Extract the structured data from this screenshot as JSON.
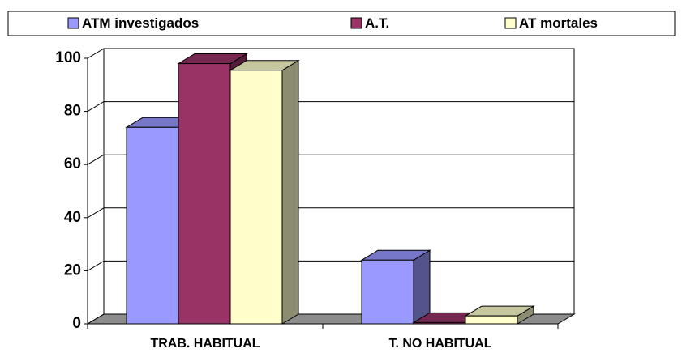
{
  "chart_data": {
    "type": "bar",
    "categories": [
      "TRAB. HABITUAL",
      "T. NO HABITUAL"
    ],
    "series": [
      {
        "name": "ATM investigados",
        "color": "#9999ff",
        "values": [
          74,
          24
        ]
      },
      {
        "name": "A.T.",
        "color": "#993366",
        "values": [
          98,
          0.5
        ]
      },
      {
        "name": "AT mortales",
        "color": "#ffffcc",
        "values": [
          95.5,
          3
        ]
      }
    ],
    "ylim": [
      0,
      100
    ],
    "yticks": [
      0,
      20,
      40,
      60,
      80,
      100
    ],
    "grid": true,
    "legend": "top"
  }
}
